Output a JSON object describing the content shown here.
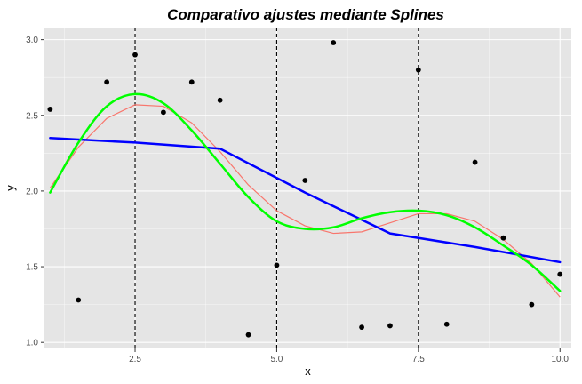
{
  "chart_data": {
    "type": "scatter",
    "title": "Comparativo ajustes mediante Splines",
    "xlabel": "x",
    "ylabel": "y",
    "xlim": [
      0.9,
      10.2
    ],
    "ylim": [
      0.96,
      3.08
    ],
    "x_ticks": [
      2.5,
      5.0,
      7.5,
      10.0
    ],
    "x_tick_labels": [
      "2.5",
      "5.0",
      "7.5",
      "10.0"
    ],
    "x_minor_ticks": [
      1.25,
      3.75,
      6.25,
      8.75
    ],
    "y_ticks": [
      1.0,
      1.5,
      2.0,
      2.5,
      3.0
    ],
    "y_tick_labels": [
      "1.0",
      "1.5",
      "2.0",
      "2.5",
      "3.0"
    ],
    "y_minor_ticks": [
      1.25,
      1.75,
      2.25,
      2.75
    ],
    "grid": true,
    "panel_background": "#e5e5e5",
    "grid_color": "#ffffff",
    "knots": [
      2.5,
      5.0,
      7.5
    ],
    "points": {
      "color": "#000000",
      "x": [
        1.0,
        1.5,
        2.0,
        2.5,
        3.0,
        3.5,
        4.0,
        4.5,
        5.0,
        5.5,
        6.0,
        6.5,
        7.0,
        7.5,
        8.0,
        8.5,
        9.0,
        9.5,
        10.0
      ],
      "y": [
        2.54,
        1.28,
        2.72,
        2.9,
        2.52,
        2.72,
        2.6,
        1.05,
        1.51,
        2.07,
        2.98,
        1.1,
        1.11,
        2.8,
        1.12,
        2.19,
        1.69,
        1.25,
        1.45
      ]
    },
    "series": [
      {
        "color": "#f8766d",
        "width": 1.2,
        "x": [
          1.0,
          1.5,
          2.0,
          2.5,
          3.0,
          3.5,
          4.0,
          4.5,
          5.0,
          5.5,
          6.0,
          6.5,
          7.0,
          7.5,
          8.0,
          8.5,
          9.0,
          9.5,
          10.0
        ],
        "y": [
          2.02,
          2.29,
          2.48,
          2.57,
          2.56,
          2.45,
          2.26,
          2.04,
          1.87,
          1.77,
          1.72,
          1.73,
          1.79,
          1.85,
          1.85,
          1.8,
          1.68,
          1.52,
          1.3
        ]
      },
      {
        "color": "#0000ff",
        "width": 2.5,
        "x": [
          1.0,
          2.5,
          4.0,
          5.5,
          7.0,
          8.5,
          10.0
        ],
        "y": [
          2.35,
          2.32,
          2.28,
          1.99,
          1.72,
          1.63,
          1.53
        ]
      },
      {
        "color": "#00ff00",
        "width": 2.5,
        "x": [
          1.0,
          1.5,
          2.0,
          2.5,
          3.0,
          3.5,
          4.0,
          4.5,
          5.0,
          5.5,
          6.0,
          6.5,
          7.0,
          7.5,
          8.0,
          8.5,
          9.0,
          9.5,
          10.0
        ],
        "y": [
          1.99,
          2.32,
          2.56,
          2.64,
          2.58,
          2.4,
          2.18,
          1.96,
          1.8,
          1.75,
          1.76,
          1.82,
          1.86,
          1.87,
          1.84,
          1.76,
          1.64,
          1.51,
          1.34
        ]
      }
    ]
  }
}
